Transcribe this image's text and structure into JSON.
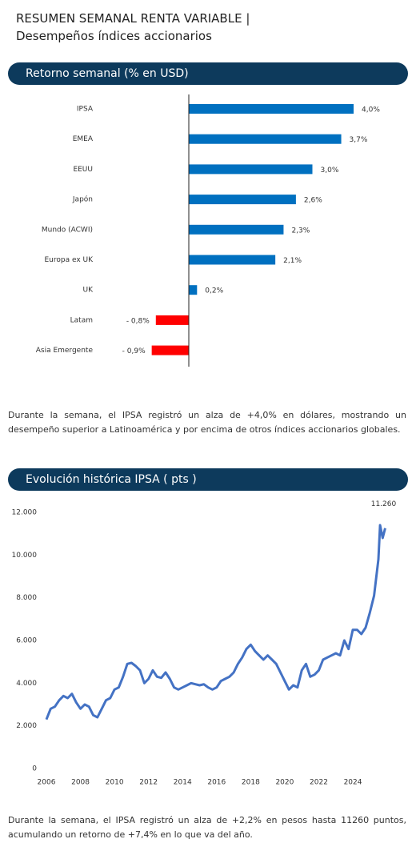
{
  "header": {
    "title": "RESUMEN SEMANAL RENTA VARIABLE |",
    "subtitle": "Desempeños índices accionarios"
  },
  "sections": [
    {
      "title": "Retorno semanal (% en USD)",
      "text": "Durante la semana, el IPSA registró un alza de +4,0% en dólares, mostrando un desempeño superior a Latinoamérica y por encima de otros índices accionarios globales."
    },
    {
      "title": "Evolución histórica IPSA ( pts )",
      "text": "Durante la semana, el IPSA registró un alza de +2,2% en pesos hasta 11260 puntos, acumulando un retorno de +7,4% en lo que va del año."
    }
  ],
  "chart_data": [
    {
      "type": "hbar",
      "categories": [
        "IPSA",
        "EMEA",
        "EEUU",
        "Japón",
        "Mundo (ACWI)",
        "Europa ex UK",
        "UK",
        "Latam",
        "Asia Emergente"
      ],
      "values": [
        4.0,
        3.7,
        3.0,
        2.6,
        2.3,
        2.1,
        0.2,
        -0.8,
        -0.9
      ],
      "value_labels": [
        "4,0%",
        "3,7%",
        "3,0%",
        "2,6%",
        "2,3%",
        "2,1%",
        "0,2%",
        "- 0,8%",
        "- 0,9%"
      ],
      "colors": [
        "#0070c0",
        "#0070c0",
        "#0070c0",
        "#0070c0",
        "#0070c0",
        "#0070c0",
        "#0070c0",
        "#ff0000",
        "#ff0000"
      ],
      "xlim": [
        -1,
        4.5
      ]
    },
    {
      "type": "line",
      "color": "#4472c4",
      "annotation": "11.260",
      "x": [
        2006,
        2006.25,
        2006.5,
        2006.75,
        2007,
        2007.25,
        2007.5,
        2007.75,
        2008,
        2008.25,
        2008.5,
        2008.75,
        2009,
        2009.25,
        2009.5,
        2009.75,
        2010,
        2010.25,
        2010.5,
        2010.75,
        2011,
        2011.25,
        2011.5,
        2011.75,
        2012,
        2012.25,
        2012.5,
        2012.75,
        2013,
        2013.25,
        2013.5,
        2013.75,
        2014,
        2014.25,
        2014.5,
        2014.75,
        2015,
        2015.25,
        2015.5,
        2015.75,
        2016,
        2016.25,
        2016.5,
        2016.75,
        2017,
        2017.25,
        2017.5,
        2017.75,
        2018,
        2018.25,
        2018.5,
        2018.75,
        2019,
        2019.25,
        2019.5,
        2019.75,
        2020,
        2020.25,
        2020.5,
        2020.75,
        2021,
        2021.25,
        2021.5,
        2021.75,
        2022,
        2022.25,
        2022.5,
        2022.75,
        2023,
        2023.25,
        2023.5,
        2023.75,
        2024,
        2024.25,
        2024.5,
        2024.75,
        2025,
        2025.25,
        2025.5,
        2025.6,
        2025.75,
        2025.9
      ],
      "values": [
        2300,
        2800,
        2900,
        3200,
        3400,
        3300,
        3500,
        3100,
        2800,
        3000,
        2900,
        2500,
        2400,
        2800,
        3200,
        3300,
        3700,
        3800,
        4300,
        4900,
        4950,
        4800,
        4600,
        4000,
        4200,
        4600,
        4300,
        4250,
        4500,
        4200,
        3800,
        3700,
        3800,
        3900,
        4000,
        3950,
        3900,
        3950,
        3800,
        3700,
        3800,
        4100,
        4200,
        4300,
        4500,
        4900,
        5200,
        5600,
        5800,
        5500,
        5300,
        5100,
        5300,
        5100,
        4900,
        4500,
        4100,
        3700,
        3900,
        3800,
        4600,
        4900,
        4300,
        4400,
        4600,
        5100,
        5200,
        5300,
        5400,
        5300,
        6000,
        5600,
        6500,
        6500,
        6300,
        6600,
        7300,
        8100,
        9800,
        11400,
        10800,
        11260
      ],
      "xlim": [
        2006,
        2026
      ],
      "xticks": [
        2006,
        2008,
        2010,
        2012,
        2014,
        2016,
        2018,
        2020,
        2022,
        2024
      ],
      "ylim": [
        0,
        12000
      ],
      "yticks": [
        0,
        {
          "value": 2000,
          "label": "2.000"
        },
        {
          "value": 4000,
          "label": "4.000"
        },
        {
          "value": 6000,
          "label": "6.000"
        },
        {
          "value": 8000,
          "label": "8.000"
        },
        {
          "value": 10000,
          "label": "10.000"
        },
        {
          "value": 12000,
          "label": "12.000"
        }
      ]
    }
  ]
}
